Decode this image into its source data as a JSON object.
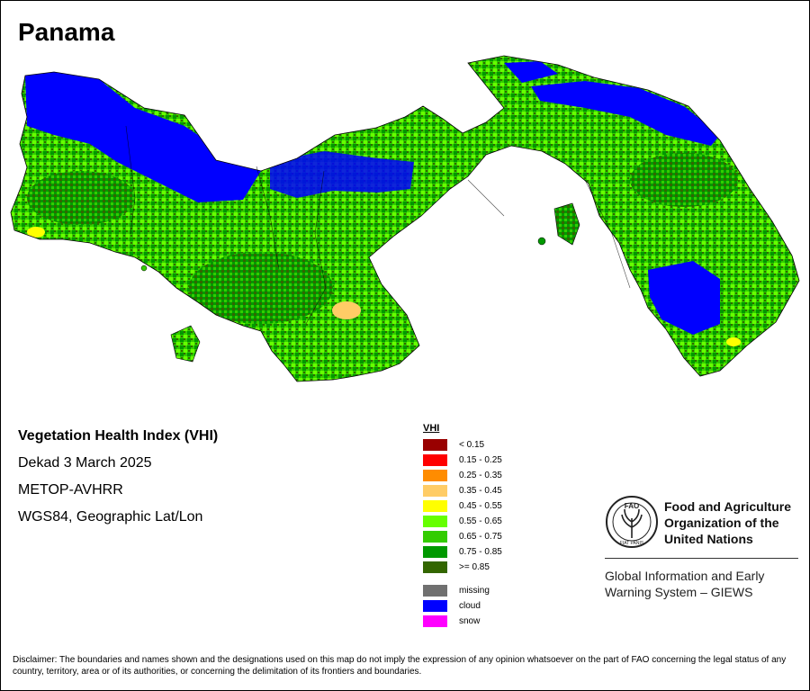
{
  "map": {
    "title": "Panama",
    "region": "Panama"
  },
  "info": {
    "index_name": "Vegetation Health Index (VHI)",
    "period": "Dekad 3 March 2025",
    "sensor": "METOP-AVHRR",
    "projection": "WGS84, Geographic Lat/Lon"
  },
  "legend": {
    "title": "VHI",
    "classes": [
      {
        "label": "< 0.15",
        "color": "#990000"
      },
      {
        "label": "0.15 - 0.25",
        "color": "#ff0000"
      },
      {
        "label": "0.25 - 0.35",
        "color": "#ff8c00"
      },
      {
        "label": "0.35 - 0.45",
        "color": "#ffcc66"
      },
      {
        "label": "0.45 - 0.55",
        "color": "#ffff00"
      },
      {
        "label": "0.55 - 0.65",
        "color": "#66ff00"
      },
      {
        "label": "0.65 - 0.75",
        "color": "#33cc00"
      },
      {
        "label": "0.75 - 0.85",
        "color": "#009900"
      },
      {
        "label": ">= 0.85",
        "color": "#336600"
      }
    ],
    "extras": [
      {
        "label": "missing",
        "color": "#707070"
      },
      {
        "label": "cloud",
        "color": "#0000ff"
      },
      {
        "label": "snow",
        "color": "#ff00ff"
      }
    ]
  },
  "organization": {
    "logo_icon": "fao-logo-icon",
    "logo_text": "FAO",
    "logo_motto": "FIAT PANIS",
    "name_lines": [
      "Food and Agriculture",
      "Organization of the",
      "United Nations"
    ],
    "program_lines": [
      "Global Information and Early",
      "Warning System – GIEWS"
    ]
  },
  "disclaimer": "Disclaimer: The boundaries and names shown and the designations used on this map do not imply the expression of any opinion whatsoever on the part of FAO concerning the legal status of any country, territory, area or of its authorities, or concerning the delimitation of its frontiers and boundaries."
}
